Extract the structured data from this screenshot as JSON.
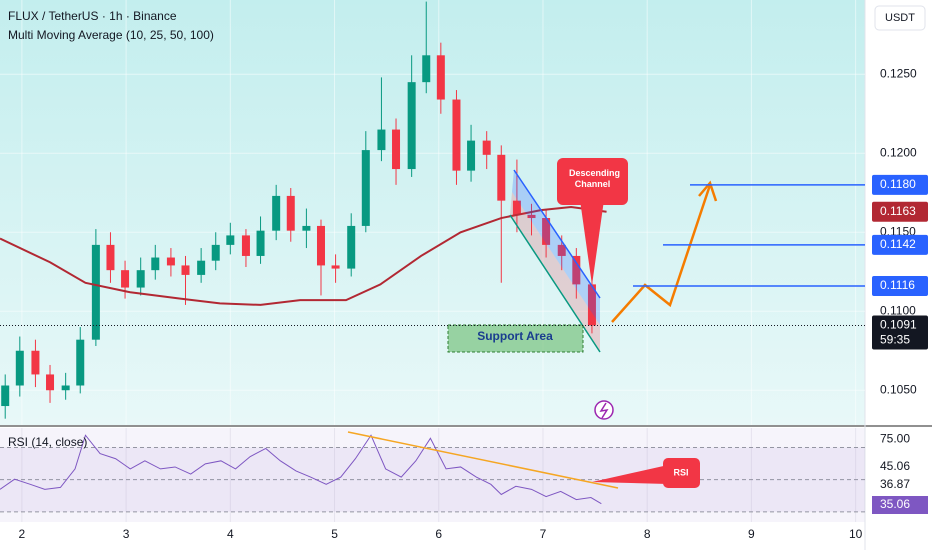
{
  "chart_data": [
    {
      "type": "candlestick",
      "title": "FLUX / TetherUS · 1h · Binance",
      "indicator": "Multi Moving Average (10, 25, 50, 100)",
      "currency": "USDT",
      "x": [
        1.84,
        1.98,
        2.13,
        2.27,
        2.42,
        2.56,
        2.71,
        2.85,
        2.99,
        3.14,
        3.28,
        3.43,
        3.57,
        3.72,
        3.86,
        4.0,
        4.15,
        4.29,
        4.44,
        4.58,
        4.73,
        4.87,
        5.01,
        5.16,
        5.3,
        5.45,
        5.59,
        5.74,
        5.88,
        6.02,
        6.17,
        6.31,
        6.46,
        6.6,
        6.75,
        6.89,
        7.03,
        7.18,
        7.32,
        7.47
      ],
      "open": [
        0.104,
        0.1053,
        0.1075,
        0.106,
        0.105,
        0.1053,
        0.1082,
        0.1142,
        0.1126,
        0.1115,
        0.1126,
        0.1134,
        0.1129,
        0.1123,
        0.1132,
        0.1142,
        0.1148,
        0.1135,
        0.1151,
        0.1173,
        0.1151,
        0.1154,
        0.1129,
        0.1127,
        0.1154,
        0.1202,
        0.1215,
        0.119,
        0.1245,
        0.1262,
        0.1234,
        0.1189,
        0.1208,
        0.1199,
        0.117,
        0.1161,
        0.1159,
        0.1142,
        0.1135,
        0.1117
      ],
      "high": [
        0.106,
        0.1084,
        0.1082,
        0.1066,
        0.1061,
        0.109,
        0.1152,
        0.115,
        0.1132,
        0.1134,
        0.1142,
        0.114,
        0.1135,
        0.114,
        0.115,
        0.1156,
        0.1152,
        0.116,
        0.118,
        0.1178,
        0.1165,
        0.1158,
        0.1136,
        0.1162,
        0.1214,
        0.1248,
        0.1222,
        0.1262,
        0.1296,
        0.127,
        0.124,
        0.1218,
        0.1214,
        0.1205,
        0.1196,
        0.1168,
        0.1164,
        0.1148,
        0.114,
        0.1122
      ],
      "low": [
        0.1032,
        0.1046,
        0.1052,
        0.1042,
        0.1044,
        0.1048,
        0.1078,
        0.1118,
        0.1108,
        0.111,
        0.112,
        0.1122,
        0.1104,
        0.1118,
        0.1126,
        0.1136,
        0.1128,
        0.113,
        0.1145,
        0.1144,
        0.114,
        0.111,
        0.1118,
        0.1122,
        0.115,
        0.1195,
        0.118,
        0.1185,
        0.1238,
        0.1225,
        0.118,
        0.1182,
        0.119,
        0.1118,
        0.115,
        0.1148,
        0.1134,
        0.1126,
        0.1108,
        0.1086
      ],
      "close": [
        0.1053,
        0.1075,
        0.106,
        0.105,
        0.1053,
        0.1082,
        0.1142,
        0.1126,
        0.1115,
        0.1126,
        0.1134,
        0.1129,
        0.1123,
        0.1132,
        0.1142,
        0.1148,
        0.1135,
        0.1151,
        0.1173,
        0.1151,
        0.1154,
        0.1129,
        0.1127,
        0.1154,
        0.1202,
        0.1215,
        0.119,
        0.1245,
        0.1262,
        0.1234,
        0.1189,
        0.1208,
        0.1199,
        0.117,
        0.1161,
        0.1159,
        0.1142,
        0.1135,
        0.1117,
        0.1091
      ],
      "up_color": "#089981",
      "down_color": "#f23645",
      "xlim": [
        1.79,
        10.09
      ],
      "xticks": [
        2,
        3,
        4,
        5,
        6,
        7,
        8,
        9,
        10
      ],
      "grid": true,
      "ylim": [
        0.1028,
        0.1297
      ],
      "yticks": [
        {
          "value": 0.125,
          "label": "0.1250"
        },
        {
          "value": 0.12,
          "label": "0.1200"
        },
        {
          "value": 0.115,
          "label": "0.1150"
        },
        {
          "value": 0.11,
          "label": "0.1100"
        },
        {
          "value": 0.105,
          "label": "0.1050"
        }
      ],
      "moving_average": {
        "color": "#b22833",
        "x": [
          1.79,
          2.27,
          2.61,
          3.04,
          3.52,
          3.9,
          4.29,
          4.67,
          5.11,
          5.44,
          5.83,
          6.21,
          6.6,
          6.98,
          7.27,
          7.61
        ],
        "values": [
          0.1146,
          0.1131,
          0.1118,
          0.1112,
          0.1108,
          0.1105,
          0.1104,
          0.1107,
          0.1107,
          0.1117,
          0.1135,
          0.115,
          0.1159,
          0.1164,
          0.1166,
          0.1163
        ],
        "value_label": "0.1163"
      },
      "levels": [
        {
          "value": 0.118,
          "label": "0.1180"
        },
        {
          "value": 0.1142,
          "label": "0.1142"
        },
        {
          "value": 0.1116,
          "label": "0.1116"
        }
      ],
      "level_color": "#2962ff",
      "last_price": {
        "value": 0.1091,
        "label": "0.1091"
      },
      "countdown": "59:35",
      "annotations": {
        "channel": "Descending Channel",
        "support": "Support Area",
        "rsi": "RSI"
      }
    },
    {
      "type": "line",
      "title": "RSI (14, close)",
      "color": "#7e57c2",
      "x": [
        1.79,
        1.93,
        2.08,
        2.22,
        2.37,
        2.51,
        2.61,
        2.75,
        2.9,
        3.04,
        3.18,
        3.33,
        3.47,
        3.62,
        3.76,
        3.91,
        4.05,
        4.19,
        4.34,
        4.48,
        4.63,
        4.77,
        4.92,
        5.06,
        5.2,
        5.35,
        5.49,
        5.64,
        5.78,
        5.92,
        6.07,
        6.21,
        6.36,
        6.5,
        6.6,
        6.74,
        6.89,
        7.03,
        7.17,
        7.32,
        7.46,
        7.56
      ],
      "values": [
        44.0,
        50.3,
        47.1,
        44.0,
        45.2,
        56.7,
        77.6,
        66.2,
        63.0,
        56.7,
        61.7,
        56.7,
        57.9,
        53.5,
        59.8,
        61.7,
        56.7,
        64.3,
        69.4,
        61.7,
        55.4,
        51.6,
        47.1,
        51.6,
        63.0,
        77.6,
        56.7,
        51.6,
        61.7,
        75.7,
        56.7,
        57.9,
        51.6,
        47.1,
        40.8,
        45.9,
        44.0,
        39.5,
        42.7,
        37.6,
        38.9,
        35.06
      ],
      "ylim": [
        23.7,
        82.1
      ],
      "yticks": [
        {
          "value": 75,
          "label": "75.00"
        }
      ],
      "bands": [
        70,
        50,
        30
      ],
      "readouts": [
        {
          "value": 45.06,
          "label": "45.06"
        },
        {
          "value": 36.87,
          "label": "36.87"
        },
        {
          "value": 35.06,
          "label": "35.06"
        }
      ]
    }
  ]
}
